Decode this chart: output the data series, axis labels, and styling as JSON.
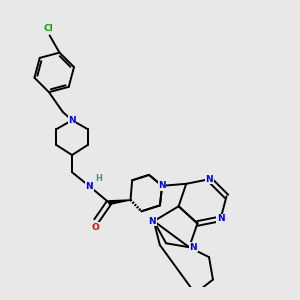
{
  "background_color": "#e8e8e8",
  "atom_colors": {
    "N": "#0000ee",
    "O": "#ee0000",
    "Cl": "#00aa00",
    "C": "#000000",
    "H": "#4a9090"
  },
  "bond_color": "#000000",
  "bond_width": 1.4,
  "fig_width": 3.0,
  "fig_height": 3.0,
  "dpi": 100
}
